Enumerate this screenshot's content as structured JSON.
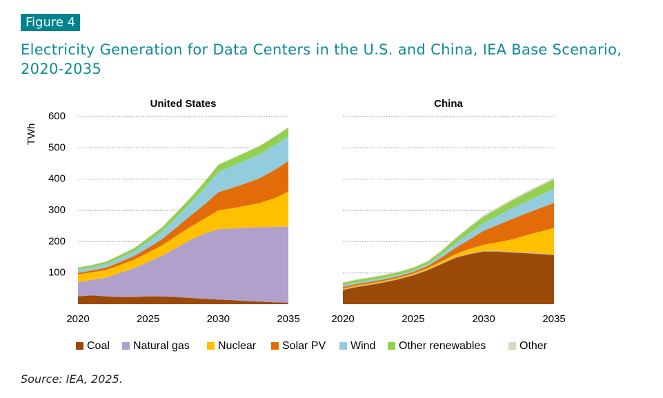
{
  "figure_label": "Figure 4",
  "title": "Electricity Generation for Data Centers in the U.S. and China, IEA Base Scenario, 2020-2035",
  "source": "Source: IEA, 2025.",
  "chart_data": [
    {
      "type": "area",
      "stacked": true,
      "title": "United States",
      "ylabel": "TWh",
      "x": [
        2020,
        2021,
        2022,
        2023,
        2024,
        2025,
        2026,
        2027,
        2028,
        2029,
        2030,
        2031,
        2032,
        2033,
        2034,
        2035
      ],
      "xlim": [
        2020,
        2035
      ],
      "xticks": [
        2020,
        2025,
        2030,
        2035
      ],
      "ylim": [
        0,
        600
      ],
      "yticks": [
        100,
        200,
        300,
        400,
        500,
        600
      ],
      "grid": true,
      "series": [
        {
          "name": "Coal",
          "color": "#9c4a08",
          "values": [
            25,
            28,
            25,
            23,
            23,
            25,
            25,
            23,
            20,
            17,
            15,
            13,
            10,
            8,
            6,
            5
          ]
        },
        {
          "name": "Natural gas",
          "color": "#b1a0cb",
          "values": [
            45,
            50,
            60,
            77,
            92,
            110,
            130,
            157,
            185,
            208,
            225,
            229,
            235,
            238,
            241,
            243
          ]
        },
        {
          "name": "Nuclear",
          "color": "#ffc000",
          "values": [
            25,
            24,
            24,
            25,
            27,
            30,
            33,
            38,
            42,
            48,
            60,
            65,
            70,
            78,
            92,
            112
          ]
        },
        {
          "name": "Solar PV",
          "color": "#e36c0a",
          "values": [
            5,
            6,
            8,
            10,
            12,
            15,
            20,
            27,
            35,
            45,
            58,
            65,
            72,
            80,
            90,
            97
          ]
        },
        {
          "name": "Wind",
          "color": "#93cddd",
          "values": [
            10,
            10,
            11,
            13,
            15,
            20,
            25,
            32,
            40,
            52,
            65,
            70,
            74,
            77,
            79,
            80
          ]
        },
        {
          "name": "Other renewables",
          "color": "#92d050",
          "values": [
            7,
            7,
            8,
            9,
            10,
            12,
            13,
            15,
            17,
            20,
            22,
            24,
            25,
            26,
            27,
            28
          ]
        },
        {
          "name": "Other",
          "color": "#ddd5c0",
          "values": [
            1,
            1,
            1,
            1,
            1,
            1,
            1,
            1,
            1,
            1,
            1,
            1,
            1,
            1,
            1,
            1
          ]
        }
      ]
    },
    {
      "type": "area",
      "stacked": true,
      "title": "China",
      "x": [
        2020,
        2021,
        2022,
        2023,
        2024,
        2025,
        2026,
        2027,
        2028,
        2029,
        2030,
        2031,
        2032,
        2033,
        2034,
        2035
      ],
      "xlim": [
        2020,
        2035
      ],
      "xticks": [
        2020,
        2025,
        2030,
        2035
      ],
      "ylim": [
        0,
        600
      ],
      "yticks": [
        100,
        200,
        300,
        400,
        500,
        600
      ],
      "grid": true,
      "series": [
        {
          "name": "Coal",
          "color": "#9c4a08",
          "values": [
            45,
            55,
            62,
            70,
            80,
            92,
            108,
            128,
            148,
            160,
            168,
            168,
            165,
            163,
            160,
            157
          ]
        },
        {
          "name": "Natural gas",
          "color": "#b1a0cb",
          "values": [
            2,
            2,
            2,
            2,
            2,
            2,
            2,
            2,
            2,
            2,
            2,
            2,
            2,
            2,
            2,
            2
          ]
        },
        {
          "name": "Nuclear",
          "color": "#ffc000",
          "values": [
            3,
            3,
            3,
            3,
            3,
            4,
            5,
            7,
            10,
            15,
            20,
            28,
            40,
            55,
            70,
            85
          ]
        },
        {
          "name": "Solar PV",
          "color": "#e36c0a",
          "values": [
            5,
            5,
            5,
            5,
            5,
            5,
            7,
            12,
            20,
            30,
            45,
            55,
            65,
            70,
            75,
            80
          ]
        },
        {
          "name": "Wind",
          "color": "#93cddd",
          "values": [
            5,
            5,
            5,
            5,
            5,
            5,
            6,
            10,
            15,
            20,
            25,
            30,
            35,
            38,
            42,
            45
          ]
        },
        {
          "name": "Other renewables",
          "color": "#92d050",
          "values": [
            8,
            8,
            8,
            8,
            8,
            8,
            8,
            10,
            14,
            18,
            20,
            22,
            24,
            26,
            28,
            30
          ]
        },
        {
          "name": "Other",
          "color": "#ddd5c0",
          "values": [
            2,
            2,
            2,
            2,
            2,
            2,
            2,
            3,
            3,
            4,
            5,
            5,
            5,
            5,
            5,
            5
          ]
        }
      ]
    }
  ]
}
